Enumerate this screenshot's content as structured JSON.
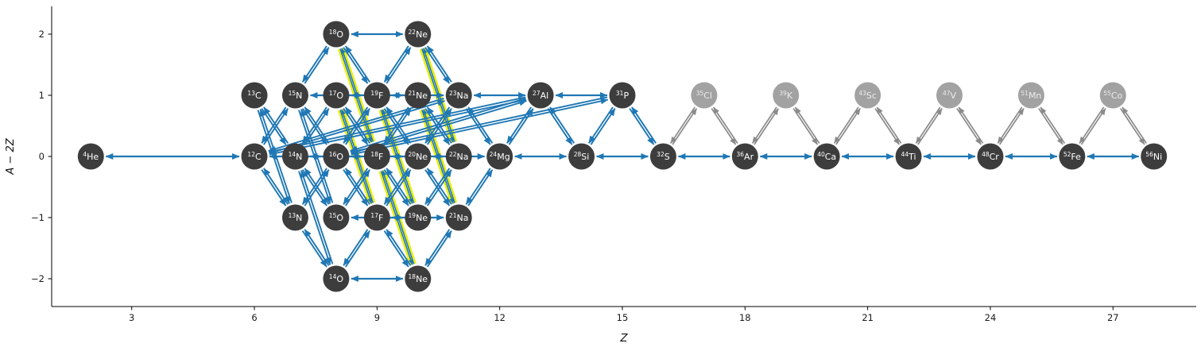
{
  "figure": {
    "xlabel": "Z",
    "ylabel": "A − 2Z",
    "x_ticks": [
      3,
      6,
      9,
      12,
      15,
      18,
      21,
      24,
      27
    ],
    "y_ticks": [
      2,
      1,
      0,
      -1,
      -2
    ],
    "y_tick_labels": [
      "2",
      "1",
      "0",
      "−1",
      "−2"
    ],
    "x_tick_labels": [
      "3",
      "6",
      "9",
      "12",
      "15",
      "18",
      "21",
      "24",
      "27"
    ]
  },
  "colors": {
    "reaction_blue": "#1f77b4",
    "highlight_yellow": "#e9ef14",
    "secondary_gray": "#8a8a8a",
    "node_dark": "#3d3d3d",
    "node_light": "#a2a2a2",
    "node_text_dark": "#ffffff",
    "node_text_light": "#ececec",
    "axis_color": "#000000",
    "background": "#ffffff"
  },
  "network": {
    "nodes": [
      {
        "id": "He4",
        "mass": "4",
        "symbol": "He",
        "z": 2,
        "a2z": 0,
        "shade": "dark"
      },
      {
        "id": "C12",
        "mass": "12",
        "symbol": "C",
        "z": 6,
        "a2z": 0,
        "shade": "dark"
      },
      {
        "id": "C13",
        "mass": "13",
        "symbol": "C",
        "z": 6,
        "a2z": 1,
        "shade": "dark"
      },
      {
        "id": "N13",
        "mass": "13",
        "symbol": "N",
        "z": 7,
        "a2z": -1,
        "shade": "dark"
      },
      {
        "id": "N14",
        "mass": "14",
        "symbol": "N",
        "z": 7,
        "a2z": 0,
        "shade": "dark"
      },
      {
        "id": "N15",
        "mass": "15",
        "symbol": "N",
        "z": 7,
        "a2z": 1,
        "shade": "dark"
      },
      {
        "id": "O14",
        "mass": "14",
        "symbol": "O",
        "z": 8,
        "a2z": -2,
        "shade": "dark"
      },
      {
        "id": "O15",
        "mass": "15",
        "symbol": "O",
        "z": 8,
        "a2z": -1,
        "shade": "dark"
      },
      {
        "id": "O16",
        "mass": "16",
        "symbol": "O",
        "z": 8,
        "a2z": 0,
        "shade": "dark"
      },
      {
        "id": "O17",
        "mass": "17",
        "symbol": "O",
        "z": 8,
        "a2z": 1,
        "shade": "dark"
      },
      {
        "id": "O18",
        "mass": "18",
        "symbol": "O",
        "z": 8,
        "a2z": 2,
        "shade": "dark"
      },
      {
        "id": "F17",
        "mass": "17",
        "symbol": "F",
        "z": 9,
        "a2z": -1,
        "shade": "dark"
      },
      {
        "id": "F18",
        "mass": "18",
        "symbol": "F",
        "z": 9,
        "a2z": 0,
        "shade": "dark"
      },
      {
        "id": "F19",
        "mass": "19",
        "symbol": "F",
        "z": 9,
        "a2z": 1,
        "shade": "dark"
      },
      {
        "id": "Ne18",
        "mass": "18",
        "symbol": "Ne",
        "z": 10,
        "a2z": -2,
        "shade": "dark"
      },
      {
        "id": "Ne19",
        "mass": "19",
        "symbol": "Ne",
        "z": 10,
        "a2z": -1,
        "shade": "dark"
      },
      {
        "id": "Ne20",
        "mass": "20",
        "symbol": "Ne",
        "z": 10,
        "a2z": 0,
        "shade": "dark"
      },
      {
        "id": "Ne21",
        "mass": "21",
        "symbol": "Ne",
        "z": 10,
        "a2z": 1,
        "shade": "dark"
      },
      {
        "id": "Ne22",
        "mass": "22",
        "symbol": "Ne",
        "z": 10,
        "a2z": 2,
        "shade": "dark"
      },
      {
        "id": "Na21",
        "mass": "21",
        "symbol": "Na",
        "z": 11,
        "a2z": -1,
        "shade": "dark"
      },
      {
        "id": "Na22",
        "mass": "22",
        "symbol": "Na",
        "z": 11,
        "a2z": 0,
        "shade": "dark"
      },
      {
        "id": "Na23",
        "mass": "23",
        "symbol": "Na",
        "z": 11,
        "a2z": 1,
        "shade": "dark"
      },
      {
        "id": "Mg24",
        "mass": "24",
        "symbol": "Mg",
        "z": 12,
        "a2z": 0,
        "shade": "dark"
      },
      {
        "id": "Al27",
        "mass": "27",
        "symbol": "Al",
        "z": 13,
        "a2z": 1,
        "shade": "dark"
      },
      {
        "id": "Si28",
        "mass": "28",
        "symbol": "Si",
        "z": 14,
        "a2z": 0,
        "shade": "dark"
      },
      {
        "id": "P31",
        "mass": "31",
        "symbol": "P",
        "z": 15,
        "a2z": 1,
        "shade": "dark"
      },
      {
        "id": "S32",
        "mass": "32",
        "symbol": "S",
        "z": 16,
        "a2z": 0,
        "shade": "dark"
      },
      {
        "id": "Cl35",
        "mass": "35",
        "symbol": "Cl",
        "z": 17,
        "a2z": 1,
        "shade": "light"
      },
      {
        "id": "Ar36",
        "mass": "36",
        "symbol": "Ar",
        "z": 18,
        "a2z": 0,
        "shade": "dark"
      },
      {
        "id": "K39",
        "mass": "39",
        "symbol": "K",
        "z": 19,
        "a2z": 1,
        "shade": "light"
      },
      {
        "id": "Ca40",
        "mass": "40",
        "symbol": "Ca",
        "z": 20,
        "a2z": 0,
        "shade": "dark"
      },
      {
        "id": "Sc43",
        "mass": "43",
        "symbol": "Sc",
        "z": 21,
        "a2z": 1,
        "shade": "light"
      },
      {
        "id": "Ti44",
        "mass": "44",
        "symbol": "Ti",
        "z": 22,
        "a2z": 0,
        "shade": "dark"
      },
      {
        "id": "V47",
        "mass": "47",
        "symbol": "V",
        "z": 23,
        "a2z": 1,
        "shade": "light"
      },
      {
        "id": "Cr48",
        "mass": "48",
        "symbol": "Cr",
        "z": 24,
        "a2z": 0,
        "shade": "dark"
      },
      {
        "id": "Mn51",
        "mass": "51",
        "symbol": "Mn",
        "z": 25,
        "a2z": 1,
        "shade": "light"
      },
      {
        "id": "Fe52",
        "mass": "52",
        "symbol": "Fe",
        "z": 26,
        "a2z": 0,
        "shade": "dark"
      },
      {
        "id": "Co55",
        "mass": "55",
        "symbol": "Co",
        "z": 27,
        "a2z": 1,
        "shade": "light"
      },
      {
        "id": "Ni56",
        "mass": "56",
        "symbol": "Ni",
        "z": 28,
        "a2z": 0,
        "shade": "dark"
      }
    ],
    "edges": {
      "alpha_capture": [
        [
          "He4",
          "C12"
        ],
        [
          "C12",
          "O16"
        ],
        [
          "N14",
          "F18"
        ],
        [
          "O16",
          "Ne20"
        ],
        [
          "F18",
          "Na22"
        ],
        [
          "Ne20",
          "Mg24"
        ],
        [
          "Mg24",
          "Si28"
        ],
        [
          "Si28",
          "S32"
        ],
        [
          "S32",
          "Ar36"
        ],
        [
          "Ar36",
          "Ca40"
        ],
        [
          "Ca40",
          "Ti44"
        ],
        [
          "Ti44",
          "Cr48"
        ],
        [
          "Cr48",
          "Fe52"
        ],
        [
          "Fe52",
          "Ni56"
        ],
        [
          "N15",
          "F19"
        ],
        [
          "O17",
          "Ne21"
        ],
        [
          "F19",
          "Na23"
        ],
        [
          "Na23",
          "Al27"
        ],
        [
          "Al27",
          "P31"
        ],
        [
          "O18",
          "Ne22"
        ],
        [
          "O15",
          "Ne19"
        ],
        [
          "F17",
          "Na21"
        ],
        [
          "O14",
          "Ne18"
        ]
      ],
      "proton_capture": [
        [
          "C12",
          "N13"
        ],
        [
          "C13",
          "N14"
        ],
        [
          "N13",
          "O14"
        ],
        [
          "N14",
          "O15"
        ],
        [
          "N15",
          "O16"
        ],
        [
          "O16",
          "F17"
        ],
        [
          "O17",
          "F18"
        ],
        [
          "O18",
          "F19"
        ],
        [
          "F17",
          "Ne18"
        ],
        [
          "F18",
          "Ne19"
        ],
        [
          "F19",
          "Ne20"
        ],
        [
          "Ne20",
          "Na21"
        ],
        [
          "Ne21",
          "Na22"
        ],
        [
          "Ne22",
          "Na23"
        ],
        [
          "Na23",
          "Mg24"
        ],
        [
          "Al27",
          "Si28"
        ],
        [
          "P31",
          "S32"
        ]
      ],
      "p_alpha": [
        [
          "C12",
          "N15"
        ],
        [
          "N13",
          "O16"
        ],
        [
          "N14",
          "O17"
        ],
        [
          "O14",
          "F17"
        ],
        [
          "O15",
          "F18"
        ],
        [
          "O16",
          "F19"
        ],
        [
          "N15",
          "O18"
        ],
        [
          "F17",
          "Ne20"
        ],
        [
          "F18",
          "Ne21"
        ],
        [
          "F19",
          "Ne22"
        ],
        [
          "Ne18",
          "Na21"
        ],
        [
          "Ne19",
          "Na22"
        ],
        [
          "Ne20",
          "Na23"
        ],
        [
          "Na21",
          "Mg24"
        ],
        [
          "Mg24",
          "Al27"
        ],
        [
          "Si28",
          "P31"
        ]
      ],
      "beta_plus": [
        [
          "C13",
          "N13"
        ],
        [
          "N14",
          "O14"
        ],
        [
          "N15",
          "O15"
        ]
      ],
      "fusion": [
        [
          "C12",
          "Na23"
        ],
        [
          "C12",
          "Al27"
        ],
        [
          "O16",
          "Al27"
        ],
        [
          "O16",
          "P31"
        ]
      ],
      "highlighted": [
        [
          "O17",
          "F17"
        ],
        [
          "O18",
          "F18"
        ],
        [
          "F18",
          "Ne18"
        ],
        [
          "F19",
          "Ne19"
        ],
        [
          "Ne21",
          "Na21"
        ],
        [
          "Ne22",
          "Na22"
        ]
      ],
      "secondary": [
        [
          "S32",
          "Cl35"
        ],
        [
          "Cl35",
          "Ar36"
        ],
        [
          "Ar36",
          "K39"
        ],
        [
          "K39",
          "Ca40"
        ],
        [
          "Ca40",
          "Sc43"
        ],
        [
          "Sc43",
          "Ti44"
        ],
        [
          "Ti44",
          "V47"
        ],
        [
          "V47",
          "Cr48"
        ],
        [
          "Cr48",
          "Mn51"
        ],
        [
          "Mn51",
          "Fe52"
        ],
        [
          "Fe52",
          "Co55"
        ],
        [
          "Co55",
          "Ni56"
        ]
      ]
    }
  }
}
